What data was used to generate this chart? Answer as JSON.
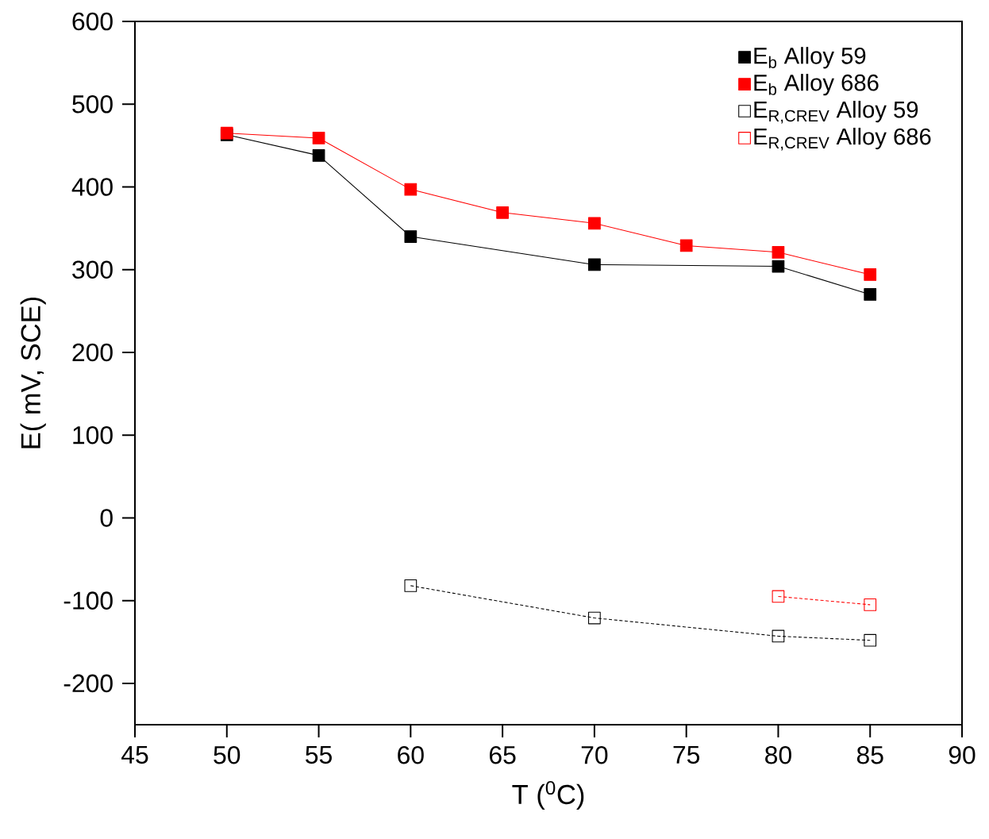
{
  "chart_data": {
    "type": "line",
    "xlabel": "T ($^{0}$C)",
    "ylabel": "E( mV, SCE)",
    "xlim": [
      45,
      90
    ],
    "xticks": [
      45,
      50,
      55,
      60,
      65,
      70,
      75,
      80,
      85,
      90
    ],
    "ylim": [
      -250,
      600
    ],
    "yticks": [
      -200,
      -100,
      0,
      100,
      200,
      300,
      400,
      500,
      600
    ],
    "legend": "top right",
    "grid": false,
    "marker": "square",
    "series": [
      {
        "name": "E$_{b}$ Alloy 59",
        "color": "#000000",
        "line_style": "solid",
        "x": [
          50,
          55,
          60,
          70,
          80,
          85
        ],
        "values": [
          463,
          438,
          340,
          306,
          304,
          270
        ]
      },
      {
        "name": "E$_{b}$ Alloy 686",
        "color": "#ff0000",
        "line_style": "solid",
        "x": [
          50,
          55,
          60,
          65,
          70,
          75,
          80,
          85
        ],
        "values": [
          465,
          459,
          397,
          369,
          356,
          329,
          321,
          294
        ]
      },
      {
        "name": "E$_{R,CREV}$ Alloy 59",
        "color": "#000000",
        "line_style": "dashed",
        "x": [
          60,
          70,
          80,
          85
        ],
        "values": [
          -82,
          -121,
          -143,
          -148
        ]
      },
      {
        "name": "E$_{R,CREV}$ Alloy 686",
        "color": "#ff0000",
        "line_style": "dashed",
        "x": [
          80,
          85
        ],
        "values": [
          -95,
          -105
        ]
      }
    ]
  }
}
